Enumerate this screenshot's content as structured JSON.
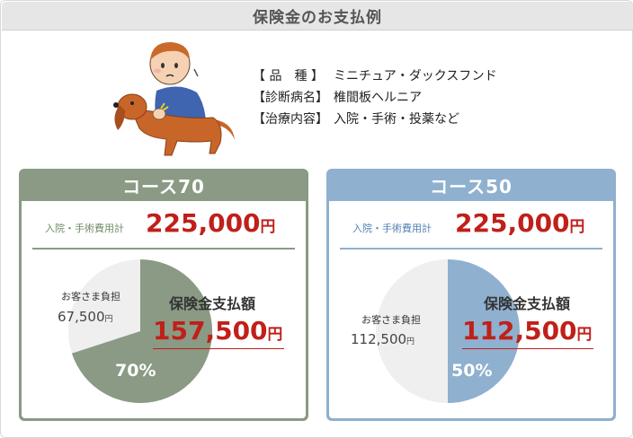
{
  "title": "保険金のお支払例",
  "case": {
    "rows": [
      {
        "key": "【 品　種 】",
        "value": "ミニチュア・ダックスフンド"
      },
      {
        "key": "【診断病名】",
        "value": "椎間板ヘルニア"
      },
      {
        "key": "【治療内容】",
        "value": "入院・手術・投薬など"
      }
    ]
  },
  "courses": [
    {
      "name": "コース70",
      "cost_label": "入院・手術費用計",
      "cost_value": "225,000",
      "cost_unit": "円",
      "self_pay_label": "お客さま負担",
      "self_pay_value": "67,500",
      "self_pay_unit": "円",
      "insurance_label": "保険金支払額",
      "insurance_value": "157,500",
      "insurance_unit": "円",
      "percent_text": "70%",
      "coverage_fraction": 0.7,
      "color": "#8a9a84"
    },
    {
      "name": "コース50",
      "cost_label": "入院・手術費用計",
      "cost_value": "225,000",
      "cost_unit": "円",
      "self_pay_label": "お客さま負担",
      "self_pay_value": "112,500",
      "self_pay_unit": "円",
      "insurance_label": "保険金支払額",
      "insurance_value": "112,500",
      "insurance_unit": "円",
      "percent_text": "50%",
      "coverage_fraction": 0.5,
      "color": "#8fb0cf"
    }
  ],
  "colors": {
    "remainder": "#efefef",
    "accent_red": "#c0201a"
  },
  "illustration": "boy-with-dachshund-illustration"
}
